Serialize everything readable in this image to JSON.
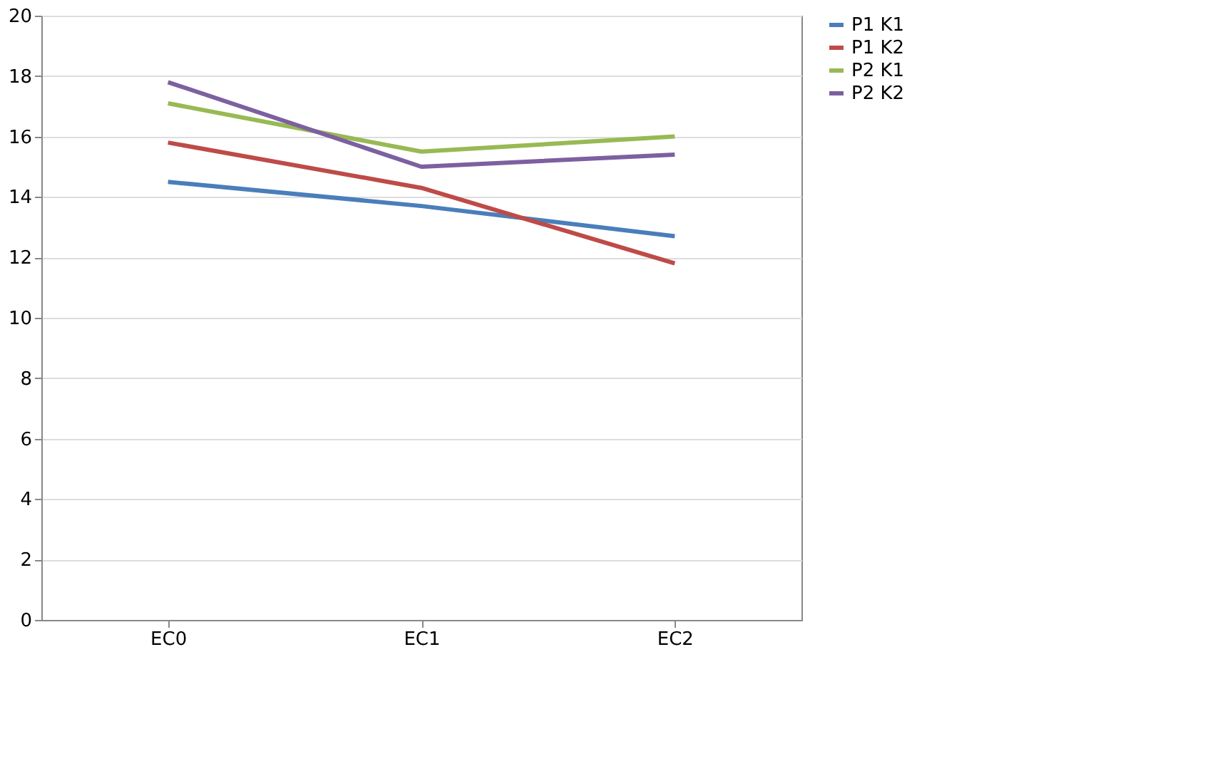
{
  "chart_data": {
    "type": "line",
    "categories": [
      "EC0",
      "EC1",
      "EC2"
    ],
    "series": [
      {
        "name": "P1 K1",
        "color": "#4a7ebb",
        "values": [
          14.5,
          13.7,
          12.7
        ]
      },
      {
        "name": "P1 K2",
        "color": "#be4b48",
        "values": [
          15.8,
          14.3,
          11.8
        ]
      },
      {
        "name": "P2 K1",
        "color": "#98b954",
        "values": [
          17.1,
          15.5,
          16.0
        ]
      },
      {
        "name": "P2 K2",
        "color": "#7d60a0",
        "values": [
          17.8,
          15.0,
          15.4
        ]
      }
    ],
    "ylim": [
      0,
      20
    ],
    "yticks": [
      0,
      2,
      4,
      6,
      8,
      10,
      12,
      14,
      16,
      18,
      20
    ],
    "grid": "y",
    "legend": "right",
    "marker": "none",
    "line_style": "solid"
  }
}
